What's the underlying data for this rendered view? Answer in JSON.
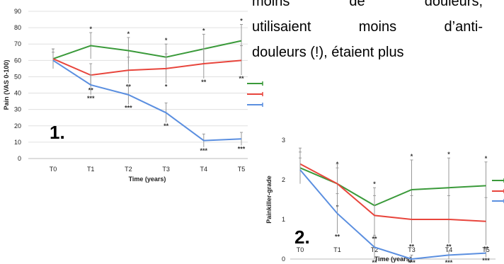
{
  "paragraph": {
    "lines": [
      "moins de douleurs,",
      "utilisaient moins d’anti-",
      "douleurs (!), étaient plus"
    ]
  },
  "colors": {
    "green": "#3a9a3a",
    "red": "#e8453c",
    "blue": "#5b8fe0",
    "error_bar": "#999999"
  },
  "chart_data": [
    {
      "type": "line",
      "label": "1.",
      "xlabel": "Time (years)",
      "ylabel": "Pain (VAS 0-100)",
      "ylim": [
        0,
        90
      ],
      "yticks": [
        "0",
        "10",
        "20",
        "30",
        "40",
        "50",
        "60",
        "70",
        "80",
        "90"
      ],
      "categories": [
        "T0",
        "T1",
        "T2",
        "T3",
        "T4",
        "T5"
      ],
      "series": [
        {
          "color": "#3a9a3a",
          "values": [
            61,
            69,
            66,
            62,
            67,
            72
          ],
          "errors": [
            6,
            8,
            8,
            8,
            9,
            10
          ],
          "sig": [
            "",
            "*",
            "*",
            "*",
            "*",
            "*"
          ]
        },
        {
          "color": "#e8453c",
          "values": [
            61,
            51,
            54,
            55,
            58,
            60
          ],
          "errors": [
            6,
            7,
            8,
            9,
            9,
            9
          ],
          "sig": [
            "",
            "**",
            "**",
            "*",
            "**",
            "**"
          ]
        },
        {
          "color": "#5b8fe0",
          "values": [
            60,
            45,
            39,
            28,
            11,
            12
          ],
          "errors": [
            5,
            6,
            6,
            6,
            4,
            4
          ],
          "sig": [
            "",
            "***",
            "***",
            "**",
            "***",
            "***"
          ]
        }
      ]
    },
    {
      "type": "line",
      "label": "2.",
      "xlabel": "Time (years)",
      "ylabel": "Painkiller-grade",
      "ylim": [
        0,
        3
      ],
      "yticks": [
        "0",
        "1",
        "2",
        "3"
      ],
      "categories": [
        "T0",
        "T1",
        "T2",
        "T3",
        "T4",
        "T5"
      ],
      "series": [
        {
          "color": "#3a9a3a",
          "values": [
            2.3,
            1.9,
            1.35,
            1.75,
            1.8,
            1.85
          ],
          "errors": [
            0.4,
            0.4,
            0.45,
            0.75,
            0.75,
            0.6
          ],
          "sig": [
            "",
            "*",
            "*",
            "*",
            "*",
            "*"
          ]
        },
        {
          "color": "#e8453c",
          "values": [
            2.4,
            1.9,
            1.1,
            1.0,
            1.0,
            0.95
          ],
          "errors": [
            0.4,
            0.5,
            0.5,
            0.6,
            0.6,
            0.6
          ],
          "sig": [
            "",
            "*",
            "**",
            "**",
            "**",
            "**"
          ]
        },
        {
          "color": "#5b8fe0",
          "values": [
            2.25,
            1.15,
            0.3,
            0.0,
            0.1,
            0.15
          ],
          "errors": [
            0.3,
            0.5,
            0.3,
            0.1,
            0.1,
            0.1
          ],
          "sig": [
            "",
            "**",
            "**",
            "***",
            "***",
            "***"
          ]
        }
      ]
    }
  ]
}
